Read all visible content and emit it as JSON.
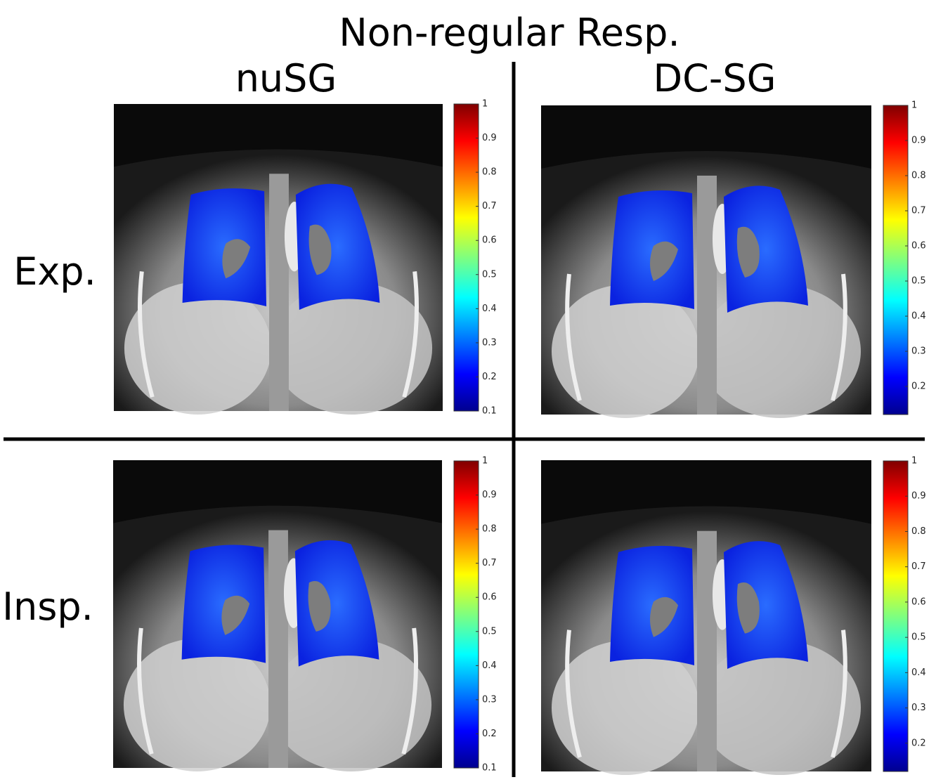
{
  "title": "Non-regular Resp.",
  "columns": [
    "nuSG",
    "DC-SG"
  ],
  "rows": [
    "Exp.",
    "Insp."
  ],
  "panels": [
    {
      "colorbar": {
        "lim": [
          0.1,
          1
        ],
        "ticks": [
          0.1,
          0.2,
          0.3,
          0.4,
          0.5,
          0.6,
          0.7,
          0.8,
          0.9,
          1
        ]
      }
    },
    {
      "colorbar": {
        "lim": [
          0.12,
          1
        ],
        "ticks": [
          0.2,
          0.3,
          0.4,
          0.5,
          0.6,
          0.7,
          0.8,
          0.9,
          1
        ]
      }
    },
    {
      "colorbar": {
        "lim": [
          0.1,
          1
        ],
        "ticks": [
          0.1,
          0.2,
          0.3,
          0.4,
          0.5,
          0.6,
          0.7,
          0.8,
          0.9,
          1
        ]
      }
    },
    {
      "colorbar": {
        "lim": [
          0.12,
          1
        ],
        "ticks": [
          0.2,
          0.3,
          0.4,
          0.5,
          0.6,
          0.7,
          0.8,
          0.9,
          1
        ]
      }
    }
  ]
}
